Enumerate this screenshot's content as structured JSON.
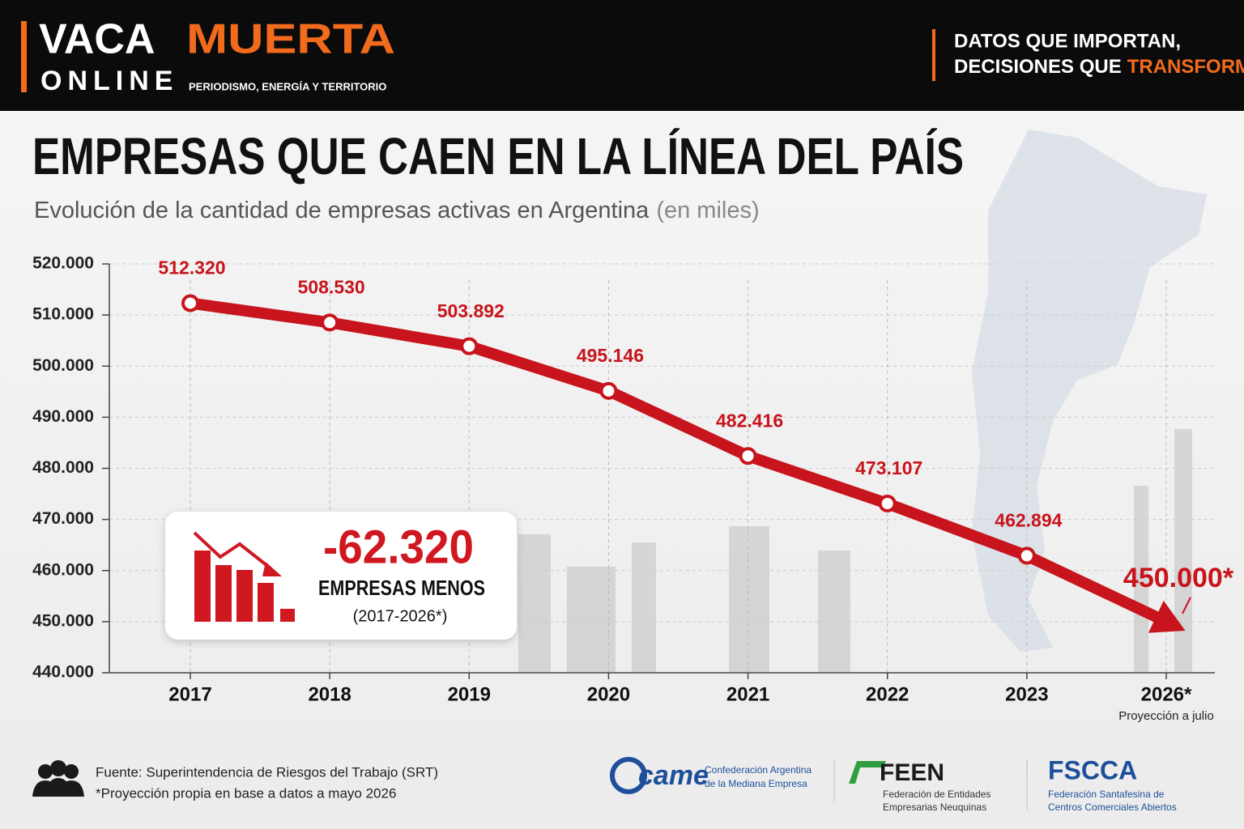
{
  "header": {
    "brand_1": "VACA",
    "brand_2": "MUERTA",
    "brand_3": "ONLINE",
    "brand_tagline": "PERIODISMO, ENERGÍA Y TERRITORIO",
    "motto_1": "DATOS QUE IMPORTAN,",
    "motto_2": "DECISIONES QUE",
    "motto_3": "TRANSFORMAN."
  },
  "chart_data": {
    "type": "line",
    "title": "EMPRESAS QUE CAEN EN LA LÍNEA DEL PAÍS",
    "subtitle": "Evolución de la cantidad de empresas activas en Argentina",
    "subtitle_unit": "(en miles)",
    "categories": [
      "2017",
      "2018",
      "2019",
      "2020",
      "2021",
      "2022",
      "2023",
      "2026*"
    ],
    "category_note": "Proyección a julio",
    "series": [
      {
        "name": "Empresas activas",
        "color": "#c8141c",
        "values": [
          512320,
          508530,
          503892,
          495146,
          482416,
          473107,
          462894,
          450000
        ],
        "value_labels": [
          "512.320",
          "508.530",
          "503.892",
          "495.146",
          "482.416",
          "473.107",
          "462.894",
          "450.000*"
        ]
      }
    ],
    "ylim": [
      440000,
      520000
    ],
    "yticks": [
      {
        "value": 440000,
        "label": "440.000"
      },
      {
        "value": 450000,
        "label": "450.000"
      },
      {
        "value": 460000,
        "label": "460.000"
      },
      {
        "value": 470000,
        "label": "470.000"
      },
      {
        "value": 480000,
        "label": "480.000"
      },
      {
        "value": 490000,
        "label": "490.000"
      },
      {
        "value": 500000,
        "label": "500.000"
      },
      {
        "value": 510000,
        "label": "510.000"
      },
      {
        "value": 520000,
        "label": "520.000"
      }
    ],
    "grid": true
  },
  "callout": {
    "value": "-62.320",
    "label": "EMPRESAS MENOS",
    "period": "(2017-2026*)"
  },
  "footer": {
    "source": "Fuente: Superintendencia de Riesgos del Trabajo (SRT)",
    "note": "*Proyección propia en base a datos a mayo 2026",
    "logos": [
      {
        "name": "came",
        "line_1": "Confederación Argentina",
        "line_2": "de la Mediana Empresa"
      },
      {
        "name": "FEEN",
        "line_1": "Federación de Entidades",
        "line_2": "Empresarias Neuquinas"
      },
      {
        "name": "FSCCA",
        "line_1": "Federación Santafesina de",
        "line_2": "Centros Comerciales Abiertos"
      }
    ]
  }
}
